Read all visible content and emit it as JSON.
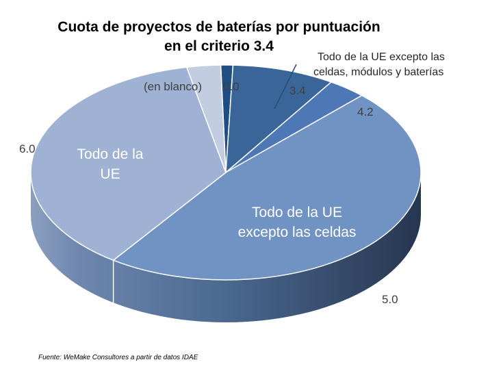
{
  "chart_data": {
    "type": "pie",
    "title_line1": "Cuota de proyectos de baterías por puntuación",
    "title_line2": "en el criterio 3.4",
    "slices": [
      {
        "name": "0.0",
        "category": "",
        "value": 1.0,
        "color": "#1f4e85"
      },
      {
        "name": "3.4",
        "category": "Todo de la UE excepto las celdas, módulos y baterías",
        "value": 8.5,
        "color": "#3a6599"
      },
      {
        "name": "4.2",
        "category": "",
        "value": 3.2,
        "color": "#4d78b5"
      },
      {
        "name": "5.0",
        "category": "Todo de la UE excepto las celdas",
        "value": 47.5,
        "color": "#7093c4"
      },
      {
        "name": "6.0",
        "category": "Todo de la UE",
        "value": 37.0,
        "color": "#9fb2d4"
      },
      {
        "name": "(en blanco)",
        "category": "",
        "value": 2.8,
        "color": "#c2cde2"
      }
    ],
    "callout_line1": "Todo de la UE excepto las",
    "callout_line2": "celdas, módulos y baterías",
    "inner_label_5_line1": "Todo de la UE",
    "inner_label_5_line2": "excepto las celdas",
    "inner_label_6_line1": "Todo de la",
    "inner_label_6_line2": "UE"
  },
  "source": "Fuente: WeMake Consultores a partir de datos IDAE"
}
